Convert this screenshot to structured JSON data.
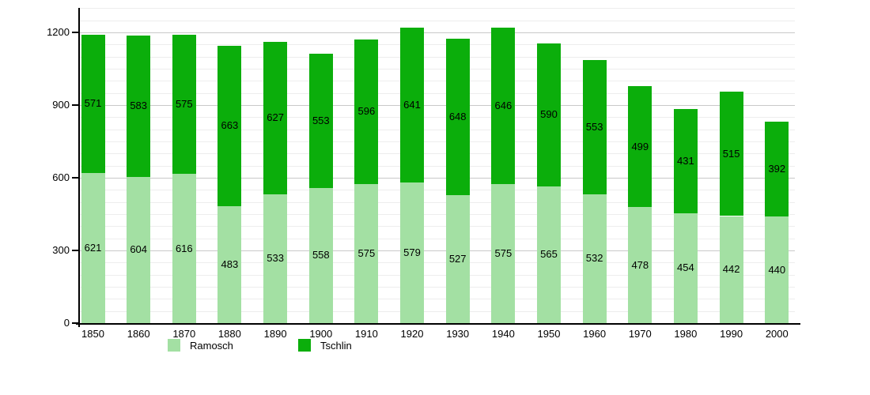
{
  "chart_data": {
    "type": "bar",
    "stacked": true,
    "title": "",
    "xlabel": "",
    "ylabel": "",
    "categories": [
      "1850",
      "1860",
      "1870",
      "1880",
      "1890",
      "1900",
      "1910",
      "1920",
      "1930",
      "1940",
      "1950",
      "1960",
      "1970",
      "1980",
      "1990",
      "2000"
    ],
    "series": [
      {
        "name": "Ramosch",
        "color": "#a3e0a3",
        "values": [
          621,
          604,
          616,
          483,
          533,
          558,
          575,
          579,
          527,
          575,
          565,
          532,
          478,
          454,
          442,
          440
        ]
      },
      {
        "name": "Tschlin",
        "color": "#0bae0b",
        "values": [
          571,
          583,
          575,
          663,
          627,
          553,
          596,
          641,
          648,
          646,
          590,
          553,
          499,
          431,
          515,
          392
        ]
      }
    ],
    "totals": [
      1192,
      1187,
      1191,
      1146,
      1160,
      1111,
      1171,
      1220,
      1175,
      1221,
      1155,
      1085,
      977,
      885,
      957,
      832
    ],
    "ylim": [
      0,
      1300
    ],
    "y_major_ticks": [
      0,
      300,
      600,
      900,
      1200
    ],
    "y_minor_step": 50,
    "grid": "on",
    "bar_labels": "shown centered on each segment",
    "legend_position": "bottom"
  },
  "colors": {
    "background": "#ffffff",
    "axis": "#000000",
    "major_gridline": "#c9c9c9",
    "minor_gridline": "#ededed",
    "label_text": "#000000"
  }
}
